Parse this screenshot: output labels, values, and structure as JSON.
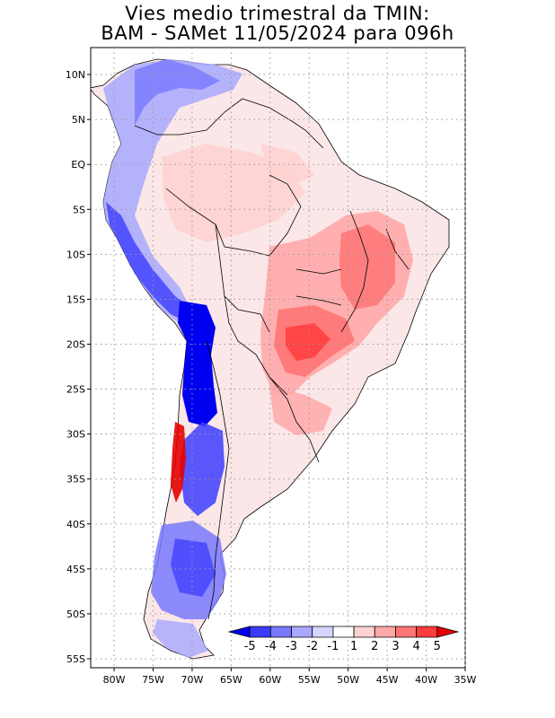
{
  "title": {
    "line1": "Vies medio trimestral da TMIN:",
    "line2": "BAM - SAMet 11/05/2024  para 096h"
  },
  "axes": {
    "lat_labels": [
      "10N",
      "5N",
      "EQ",
      "5S",
      "10S",
      "15S",
      "20S",
      "25S",
      "30S",
      "35S",
      "40S",
      "45S",
      "50S",
      "55S"
    ],
    "lat_values": [
      10,
      5,
      0,
      -5,
      -10,
      -15,
      -20,
      -25,
      -30,
      -35,
      -40,
      -45,
      -50,
      -55
    ],
    "lon_labels": [
      "80W",
      "75W",
      "70W",
      "65W",
      "60W",
      "55W",
      "50W",
      "45W",
      "40W",
      "35W"
    ],
    "lon_values": [
      -80,
      -75,
      -70,
      -65,
      -60,
      -55,
      -50,
      -45,
      -40,
      -35
    ],
    "lat_range": [
      -56,
      13
    ],
    "lon_range": [
      -83,
      -35
    ],
    "grid": "dotted"
  },
  "colorbar": {
    "labels": [
      "-5",
      "-4",
      "-3",
      "-2",
      "-1",
      "1",
      "2",
      "3",
      "4",
      "5"
    ],
    "colors": [
      "#0000f0",
      "#3c3cff",
      "#7878ff",
      "#a8a8ff",
      "#d6d6ff",
      "#ffffff",
      "#ffd2d2",
      "#ffa8a8",
      "#ff7474",
      "#ff3c3c",
      "#e60000"
    ],
    "placement": "bottom-right inside map"
  },
  "colors": {
    "frame": "#000000",
    "grid": "#9a9a9a",
    "land_neutral": "#ffffff",
    "ocean": "#ffffff"
  }
}
